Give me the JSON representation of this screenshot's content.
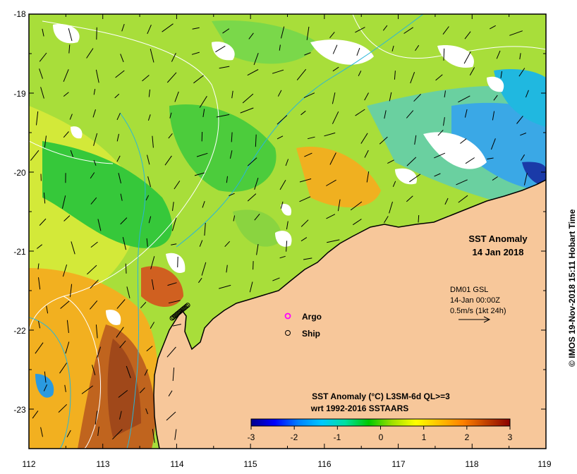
{
  "map": {
    "lon_range": [
      112,
      119
    ],
    "lat_range": [
      -23.5,
      -18
    ],
    "lon_ticks": [
      "112",
      "113",
      "114",
      "115",
      "116",
      "117",
      "118",
      "119"
    ],
    "lat_ticks": [
      "-18",
      "-19",
      "-20",
      "-21",
      "-22",
      "-23"
    ],
    "land_color": "#f7c79a",
    "ocean_base_color": "#a8de3a"
  },
  "title": {
    "line1": "SST Anomaly",
    "line2": "14 Jan 2018"
  },
  "vector_key": {
    "line1": "DM01 GSL",
    "line2": "14-Jan 00:00Z",
    "line3": "0.5m/s (1kt 24h)"
  },
  "legend": {
    "argo_label": "Argo",
    "ship_label": "Ship",
    "argo_color": "#ff00ff"
  },
  "colorbar": {
    "title_line1": "SST Anomaly (°C) L3SM-6d QL>=3",
    "title_line2": "wrt 1992-2016 SSTAARS",
    "range": [
      -3,
      3
    ],
    "ticks": [
      "-3",
      "-2",
      "-1",
      "0",
      "1",
      "2",
      "3"
    ],
    "colors": [
      "#00008b",
      "#0000ff",
      "#0080ff",
      "#00c8ff",
      "#00e0a0",
      "#00c800",
      "#a0e000",
      "#ffff00",
      "#ffc000",
      "#ff8000",
      "#c04000",
      "#8b0000"
    ]
  },
  "credit": "© IMOS 19-Nov-2018 15:11 Hobart Time"
}
